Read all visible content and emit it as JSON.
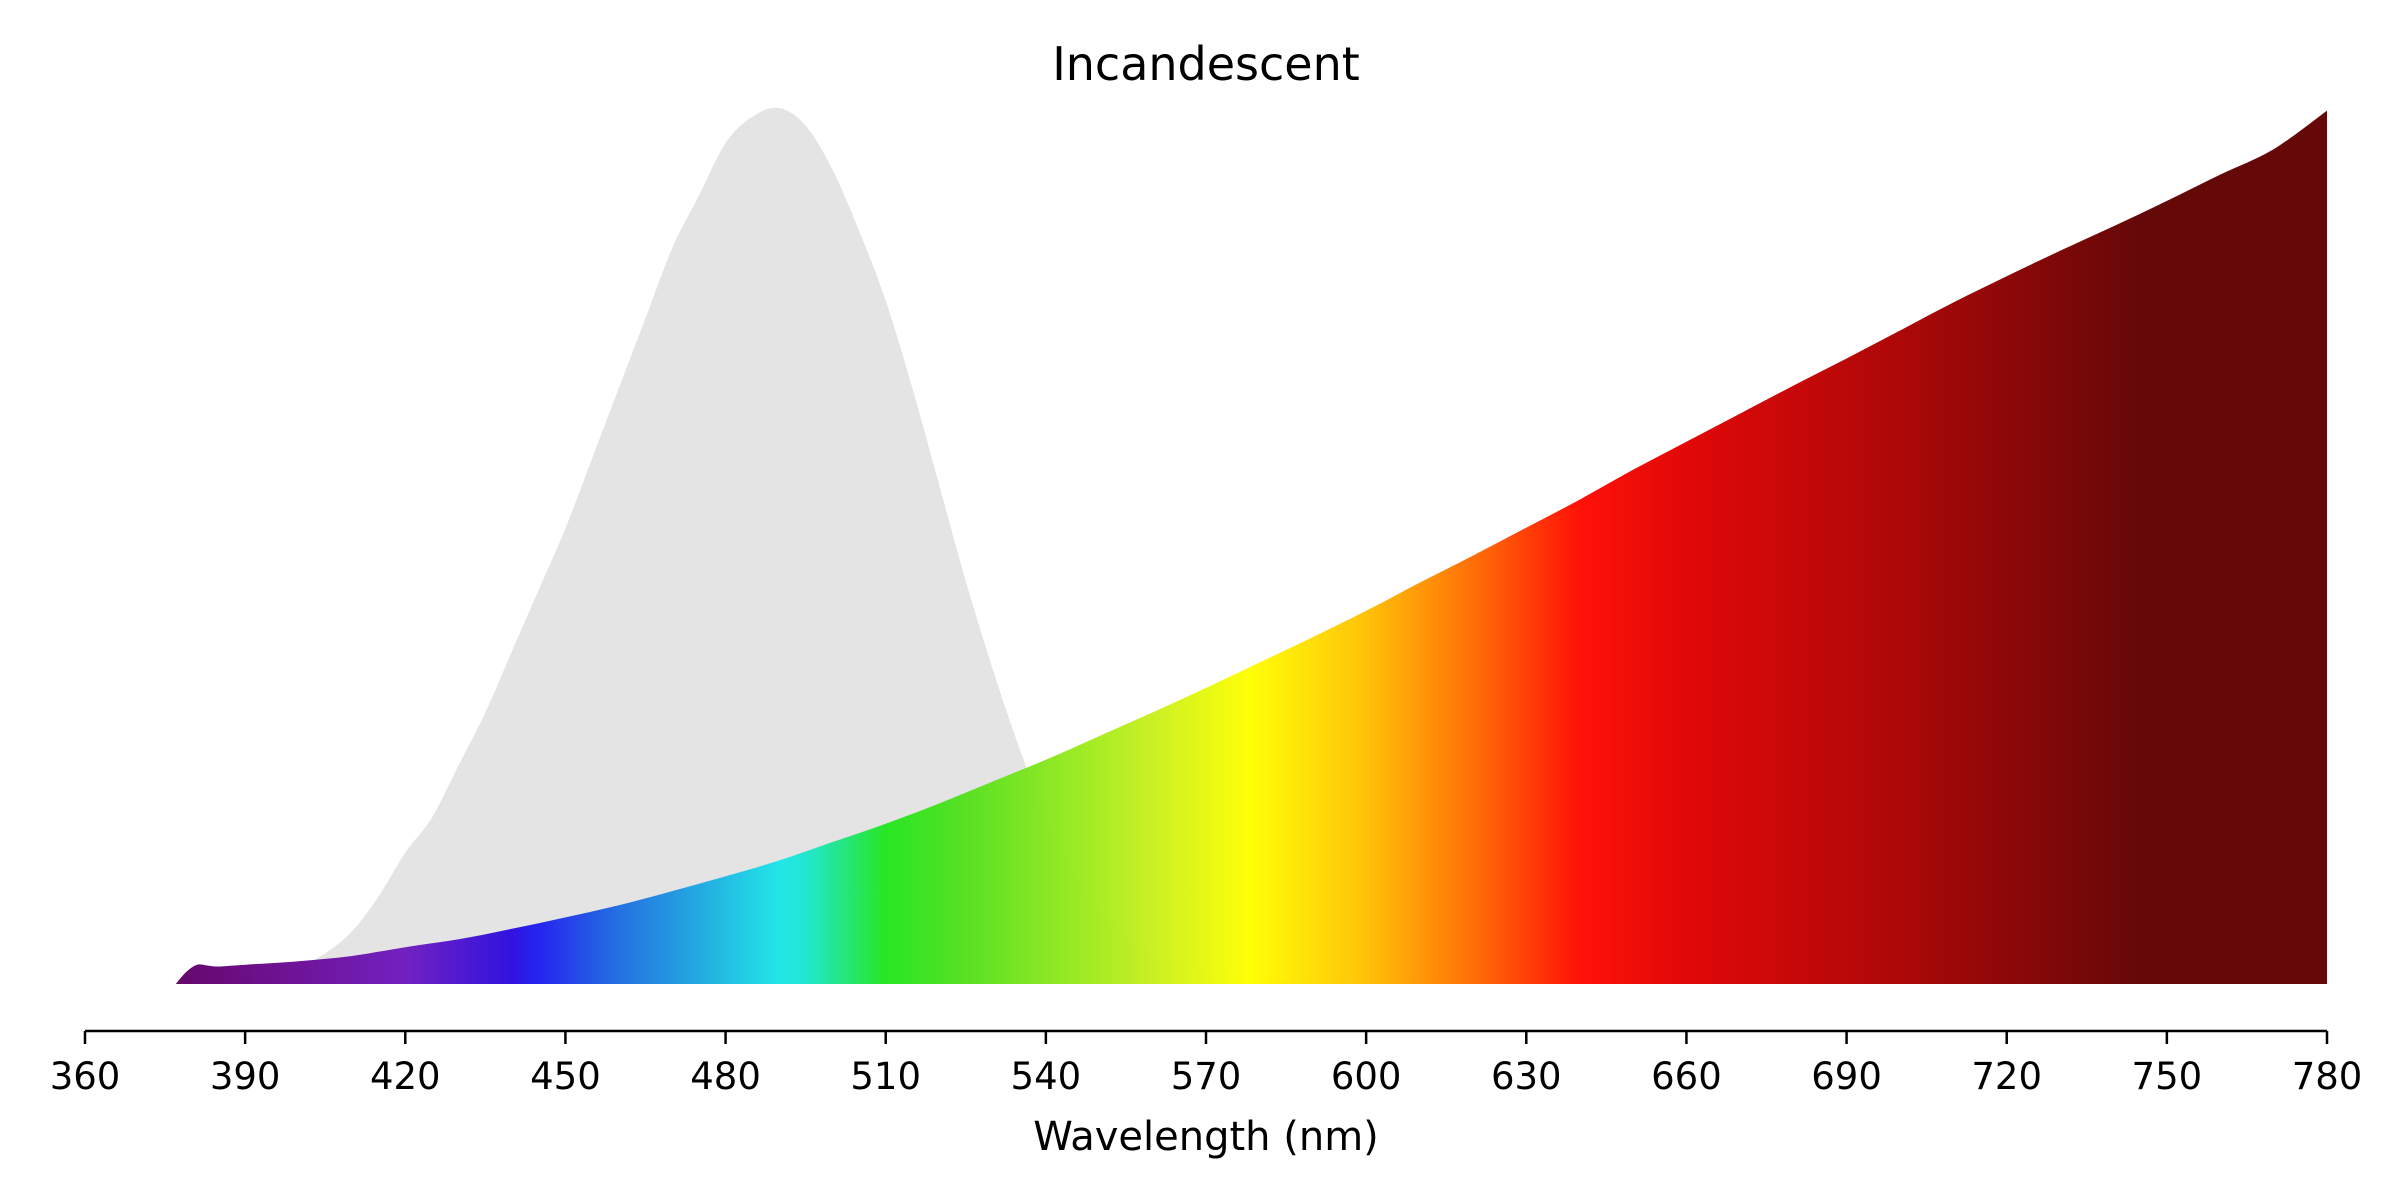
{
  "chart_data": {
    "type": "area",
    "title": "Incandescent",
    "xlabel": "Wavelength (nm)",
    "ylabel": "",
    "xlim": [
      360,
      780
    ],
    "x_ticks": [
      360,
      390,
      420,
      450,
      480,
      510,
      540,
      570,
      600,
      630,
      660,
      690,
      720,
      750,
      780
    ],
    "y_axis_visible": false,
    "grid": false,
    "legend": "none",
    "series": [
      {
        "role": "spectral-sensitivity-reference",
        "fill": "#e4e4e4",
        "x": [
          377,
          380,
          390,
          400,
          405,
          410,
          415,
          420,
          425,
          430,
          435,
          440,
          445,
          450,
          455,
          460,
          465,
          470,
          475,
          480,
          485,
          490,
          495,
          500,
          505,
          510,
          515,
          520,
          525,
          530,
          535,
          540,
          545,
          550,
          555,
          560,
          565,
          570,
          575,
          580,
          590,
          600,
          610,
          620,
          630
        ],
        "y": [
          0,
          0.0,
          0.005,
          0.02,
          0.035,
          0.06,
          0.1,
          0.15,
          0.19,
          0.25,
          0.31,
          0.38,
          0.45,
          0.52,
          0.6,
          0.68,
          0.76,
          0.84,
          0.9,
          0.96,
          0.99,
          1.0,
          0.98,
          0.93,
          0.86,
          0.78,
          0.68,
          0.57,
          0.46,
          0.36,
          0.27,
          0.19,
          0.13,
          0.085,
          0.055,
          0.035,
          0.022,
          0.014,
          0.009,
          0.006,
          0.003,
          0.0015,
          0.0008,
          0.0003,
          0
        ]
      },
      {
        "role": "incandescent-spectrum",
        "fill": "spectral-gradient",
        "x": [
          377,
          379,
          381,
          383,
          385,
          390,
          400,
          410,
          420,
          430,
          440,
          450,
          460,
          470,
          480,
          490,
          500,
          510,
          520,
          530,
          540,
          550,
          560,
          570,
          580,
          590,
          600,
          610,
          620,
          630,
          640,
          650,
          660,
          670,
          680,
          690,
          700,
          710,
          720,
          730,
          740,
          750,
          760,
          770,
          780
        ],
        "y": [
          0,
          0.014,
          0.022,
          0.021,
          0.02,
          0.022,
          0.026,
          0.032,
          0.042,
          0.051,
          0.063,
          0.076,
          0.09,
          0.106,
          0.123,
          0.141,
          0.162,
          0.183,
          0.206,
          0.231,
          0.256,
          0.283,
          0.31,
          0.338,
          0.367,
          0.396,
          0.426,
          0.458,
          0.489,
          0.521,
          0.553,
          0.587,
          0.619,
          0.651,
          0.683,
          0.714,
          0.746,
          0.778,
          0.808,
          0.837,
          0.865,
          0.894,
          0.924,
          0.953,
          0.997
        ]
      }
    ],
    "spectrum_colors": [
      {
        "nm": 377,
        "color": "#5f0066"
      },
      {
        "nm": 395,
        "color": "#6a0a8c"
      },
      {
        "nm": 420,
        "color": "#6e1bbf"
      },
      {
        "nm": 440,
        "color": "#2b0ce0"
      },
      {
        "nm": 445,
        "color": "#1f1ff0"
      },
      {
        "nm": 460,
        "color": "#1e6de0"
      },
      {
        "nm": 475,
        "color": "#1da8e0"
      },
      {
        "nm": 490,
        "color": "#1ce6e8"
      },
      {
        "nm": 495,
        "color": "#1ce6d0"
      },
      {
        "nm": 510,
        "color": "#22e61e"
      },
      {
        "nm": 525,
        "color": "#55e01e"
      },
      {
        "nm": 560,
        "color": "#c8f01e"
      },
      {
        "nm": 578,
        "color": "#ffff00"
      },
      {
        "nm": 600,
        "color": "#ffc000"
      },
      {
        "nm": 620,
        "color": "#ff6a00"
      },
      {
        "nm": 640,
        "color": "#ff0a00"
      },
      {
        "nm": 660,
        "color": "#e00000"
      },
      {
        "nm": 700,
        "color": "#aa0000"
      },
      {
        "nm": 745,
        "color": "#600000"
      },
      {
        "nm": 780,
        "color": "#600000"
      }
    ]
  }
}
